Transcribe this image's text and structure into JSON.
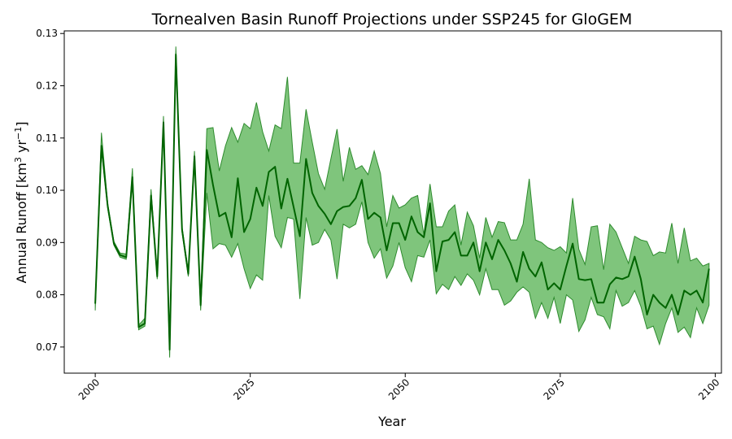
{
  "chart_data": {
    "type": "line",
    "title": "Tornealven Basin Runoff Projections under SSP245 for GloGEM",
    "xlabel": "Year",
    "ylabel": "Annual Runoff [km³ yr⁻¹]",
    "xlim": [
      1995,
      2101
    ],
    "ylim": [
      0.065,
      0.1305
    ],
    "xticks": [
      "2000",
      "2025",
      "2050",
      "2075",
      "2100"
    ],
    "yticks": [
      "0.07",
      "0.08",
      "0.09",
      "0.10",
      "0.11",
      "0.12",
      "0.13"
    ],
    "grid": false,
    "x": [
      2000,
      2001,
      2002,
      2003,
      2004,
      2005,
      2006,
      2007,
      2008,
      2009,
      2010,
      2011,
      2012,
      2013,
      2014,
      2015,
      2016,
      2017,
      2018,
      2019,
      2020,
      2021,
      2022,
      2023,
      2024,
      2025,
      2026,
      2027,
      2028,
      2029,
      2030,
      2031,
      2032,
      2033,
      2034,
      2035,
      2036,
      2037,
      2038,
      2039,
      2040,
      2041,
      2042,
      2043,
      2044,
      2045,
      2046,
      2047,
      2048,
      2049,
      2050,
      2051,
      2052,
      2053,
      2054,
      2055,
      2056,
      2057,
      2058,
      2059,
      2060,
      2061,
      2062,
      2063,
      2064,
      2065,
      2066,
      2067,
      2068,
      2069,
      2070,
      2071,
      2072,
      2073,
      2074,
      2075,
      2076,
      2077,
      2078,
      2079,
      2080,
      2081,
      2082,
      2083,
      2084,
      2085,
      2086,
      2087,
      2088,
      2089,
      2090,
      2091,
      2092,
      2093,
      2094,
      2095,
      2096,
      2097,
      2098,
      2099
    ],
    "series": [
      {
        "role": "mean",
        "color": "#006400",
        "values": [
          0.0783,
          0.1085,
          0.097,
          0.0898,
          0.0876,
          0.0872,
          0.1025,
          0.0738,
          0.0745,
          0.099,
          0.0835,
          0.113,
          0.0695,
          0.126,
          0.0925,
          0.084,
          0.1065,
          0.078,
          0.1077,
          0.101,
          0.095,
          0.0957,
          0.091,
          0.1023,
          0.092,
          0.0945,
          0.1005,
          0.097,
          0.1035,
          0.1045,
          0.0965,
          0.1022,
          0.0968,
          0.0912,
          0.106,
          0.0995,
          0.097,
          0.0955,
          0.0935,
          0.096,
          0.0968,
          0.097,
          0.0985,
          0.102,
          0.0945,
          0.0957,
          0.0948,
          0.0885,
          0.0937,
          0.0937,
          0.0905,
          0.095,
          0.092,
          0.091,
          0.0975,
          0.0845,
          0.0902,
          0.0905,
          0.092,
          0.0875,
          0.0875,
          0.09,
          0.0845,
          0.09,
          0.0868,
          0.0905,
          0.0885,
          0.086,
          0.0825,
          0.0882,
          0.085,
          0.0835,
          0.0862,
          0.081,
          0.0822,
          0.081,
          0.0855,
          0.0898,
          0.083,
          0.0828,
          0.083,
          0.0785,
          0.0785,
          0.082,
          0.0833,
          0.083,
          0.0835,
          0.0873,
          0.083,
          0.0762,
          0.08,
          0.0785,
          0.0775,
          0.08,
          0.0762,
          0.0808,
          0.08,
          0.0808,
          0.0785,
          0.085
        ]
      },
      {
        "role": "upper",
        "values": [
          0.0785,
          0.111,
          0.0975,
          0.0902,
          0.088,
          0.0878,
          0.1042,
          0.0742,
          0.0755,
          0.1002,
          0.084,
          0.1142,
          0.0698,
          0.1275,
          0.093,
          0.0845,
          0.1075,
          0.0785,
          0.1118,
          0.112,
          0.1037,
          0.1085,
          0.112,
          0.1092,
          0.1128,
          0.1118,
          0.1168,
          0.1112,
          0.1075,
          0.1125,
          0.1118,
          0.1217,
          0.1052,
          0.1052,
          0.1155,
          0.1092,
          0.1032,
          0.1002,
          0.106,
          0.1117,
          0.1017,
          0.1082,
          0.104,
          0.1047,
          0.103,
          0.1075,
          0.1032,
          0.093,
          0.099,
          0.0966,
          0.0972,
          0.0985,
          0.099,
          0.0915,
          0.1012,
          0.093,
          0.093,
          0.096,
          0.0972,
          0.0895,
          0.0958,
          0.0932,
          0.087,
          0.0948,
          0.091,
          0.094,
          0.0938,
          0.0905,
          0.0905,
          0.0935,
          0.1022,
          0.0905,
          0.09,
          0.089,
          0.0885,
          0.0892,
          0.088,
          0.0985,
          0.0887,
          0.0858,
          0.093,
          0.0932,
          0.0848,
          0.0935,
          0.092,
          0.089,
          0.086,
          0.0912,
          0.0905,
          0.0902,
          0.0875,
          0.0882,
          0.088,
          0.0937,
          0.086,
          0.0928,
          0.0865,
          0.087,
          0.0855,
          0.086
        ]
      },
      {
        "role": "lower",
        "values": [
          0.077,
          0.108,
          0.0965,
          0.0895,
          0.0872,
          0.0868,
          0.102,
          0.0733,
          0.074,
          0.0985,
          0.083,
          0.1125,
          0.068,
          0.1255,
          0.092,
          0.0835,
          0.106,
          0.077,
          0.0995,
          0.0888,
          0.0898,
          0.0895,
          0.0872,
          0.0898,
          0.085,
          0.0812,
          0.0838,
          0.0828,
          0.099,
          0.0912,
          0.089,
          0.0948,
          0.0945,
          0.0792,
          0.0948,
          0.0895,
          0.09,
          0.0925,
          0.0905,
          0.083,
          0.0935,
          0.0928,
          0.0935,
          0.0978,
          0.09,
          0.087,
          0.0888,
          0.0832,
          0.0855,
          0.09,
          0.0852,
          0.0825,
          0.0875,
          0.0872,
          0.0905,
          0.0802,
          0.082,
          0.081,
          0.0835,
          0.0818,
          0.084,
          0.0828,
          0.08,
          0.085,
          0.081,
          0.081,
          0.078,
          0.0788,
          0.0805,
          0.0815,
          0.0805,
          0.0755,
          0.0785,
          0.0755,
          0.0795,
          0.0745,
          0.08,
          0.079,
          0.073,
          0.0752,
          0.0795,
          0.0762,
          0.0758,
          0.0735,
          0.0808,
          0.0778,
          0.0785,
          0.0808,
          0.0778,
          0.0735,
          0.074,
          0.0705,
          0.0745,
          0.0775,
          0.0728,
          0.0738,
          0.0718,
          0.0775,
          0.0745,
          0.078
        ]
      }
    ],
    "band_color": "#4daf4a",
    "band_edge_color": "#2e8b2e"
  }
}
